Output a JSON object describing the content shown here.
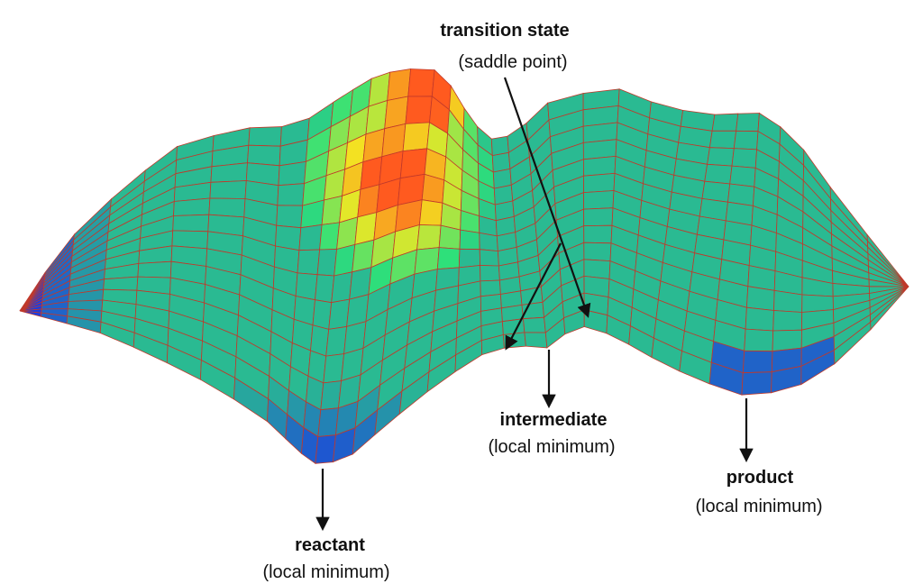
{
  "labels": {
    "transition_state": {
      "title": "transition state",
      "subtitle": "(saddle point)"
    },
    "intermediate": {
      "title": "intermediate",
      "subtitle": "(local minimum)"
    },
    "reactant": {
      "title": "reactant",
      "subtitle": "(local minimum)"
    },
    "product": {
      "title": "product",
      "subtitle": "(local minimum)"
    }
  },
  "colors": {
    "low": "#1a33e6",
    "mid": "#2ee07a",
    "high": "#f2e822",
    "peak": "#ff5a1f",
    "mesh_line": "#c0392b",
    "arrow": "#111111"
  }
}
